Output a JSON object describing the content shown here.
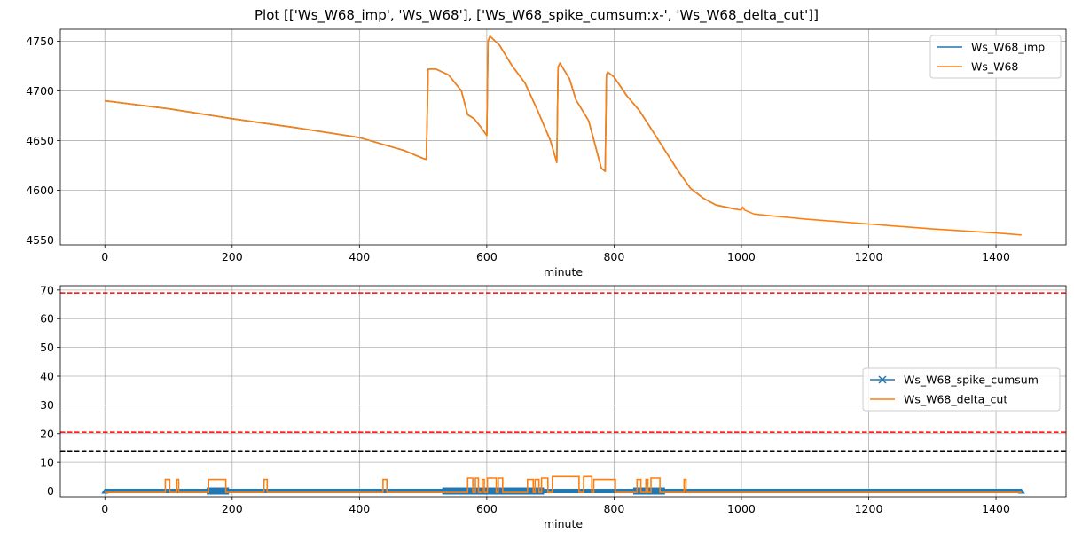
{
  "figure": {
    "title": "Plot [['Ws_W68_imp', 'Ws_W68'], ['Ws_W68_spike_cumsum:x-', 'Ws_W68_delta_cut']]"
  },
  "chart_data": [
    {
      "type": "line",
      "xlabel": "minute",
      "ylabel": "",
      "xlim": [
        -70,
        1510
      ],
      "ylim": [
        4545,
        4762
      ],
      "xticks": [
        0,
        200,
        400,
        600,
        800,
        1000,
        1200,
        1400
      ],
      "yticks": [
        4550,
        4600,
        4650,
        4700,
        4750
      ],
      "grid": true,
      "legend": "top-right",
      "series": [
        {
          "name": "Ws_W68_imp",
          "color": "#1f77b4",
          "marker": "none",
          "x": [
            0,
            100,
            200,
            300,
            400,
            470,
            500,
            505,
            508,
            520,
            540,
            560,
            565,
            570,
            580,
            590,
            600,
            602,
            605,
            620,
            640,
            660,
            680,
            700,
            710,
            712,
            715,
            730,
            740,
            760,
            780,
            786,
            788,
            790,
            800,
            820,
            840,
            860,
            880,
            900,
            920,
            940,
            960,
            990
          ],
          "y": [
            4690,
            4682,
            4672,
            4663,
            4653,
            4640,
            4632,
            4631,
            4722,
            4722,
            4716,
            4700,
            4688,
            4676,
            4672,
            4664,
            4655,
            4750,
            4755,
            4746,
            4725,
            4708,
            4680,
            4650,
            4628,
            4724,
            4728,
            4712,
            4691,
            4670,
            4622,
            4619,
            4716,
            4719,
            4714,
            4695,
            4680,
            4660,
            4640,
            4620,
            4602,
            4592,
            4585,
            4581
          ]
        },
        {
          "name": "Ws_W68",
          "color": "#ff7f0e",
          "marker": "none",
          "x": [
            0,
            100,
            200,
            300,
            400,
            470,
            500,
            505,
            508,
            520,
            540,
            560,
            565,
            570,
            580,
            590,
            600,
            602,
            605,
            620,
            640,
            660,
            680,
            700,
            710,
            712,
            715,
            730,
            740,
            760,
            780,
            786,
            788,
            790,
            800,
            820,
            840,
            860,
            880,
            900,
            920,
            940,
            960,
            990,
            1000,
            1002,
            1005,
            1020,
            1050,
            1100,
            1200,
            1300,
            1400,
            1440
          ],
          "y": [
            4690,
            4682,
            4672,
            4663,
            4653,
            4640,
            4632,
            4631,
            4722,
            4722,
            4716,
            4700,
            4688,
            4676,
            4672,
            4664,
            4655,
            4750,
            4755,
            4746,
            4725,
            4708,
            4680,
            4650,
            4628,
            4724,
            4728,
            4712,
            4691,
            4670,
            4622,
            4619,
            4716,
            4719,
            4714,
            4695,
            4680,
            4660,
            4640,
            4620,
            4602,
            4592,
            4585,
            4581,
            4580,
            4583,
            4580,
            4576,
            4574,
            4571,
            4566,
            4561,
            4557,
            4555
          ]
        }
      ]
    },
    {
      "type": "line",
      "xlabel": "minute",
      "ylabel": "",
      "xlim": [
        -70,
        1510
      ],
      "ylim": [
        -2,
        71.5
      ],
      "xticks": [
        0,
        200,
        400,
        600,
        800,
        1000,
        1200,
        1400
      ],
      "yticks": [
        0,
        10,
        20,
        30,
        40,
        50,
        60,
        70
      ],
      "grid": true,
      "legend": "center-right",
      "hlines": [
        {
          "y": 69,
          "color": "#ff0000",
          "style": "dashed"
        },
        {
          "y": 20.5,
          "color": "#ff0000",
          "style": "dashed"
        },
        {
          "y": 14,
          "color": "#000000",
          "style": "dashed"
        }
      ],
      "series": [
        {
          "name": "Ws_W68_spike_cumsum",
          "color": "#1f77b4",
          "marker": "x",
          "x": [
            0,
            1440
          ],
          "y": [
            0,
            0
          ],
          "note_dense_band": [
            [
              160,
              195
            ],
            [
              530,
              690
            ],
            [
              830,
              880
            ]
          ]
        },
        {
          "name": "Ws_W68_delta_cut",
          "color": "#ff7f0e",
          "marker": "none",
          "pulses": [
            {
              "start": 95,
              "end": 102,
              "height": 4
            },
            {
              "start": 113,
              "end": 116,
              "height": 4
            },
            {
              "start": 163,
              "end": 190,
              "height": 4
            },
            {
              "start": 250,
              "end": 255,
              "height": 4
            },
            {
              "start": 437,
              "end": 443,
              "height": 4
            },
            {
              "start": 570,
              "end": 578,
              "height": 4.5
            },
            {
              "start": 582,
              "end": 587,
              "height": 4.5
            },
            {
              "start": 593,
              "end": 596,
              "height": 4
            },
            {
              "start": 601,
              "end": 615,
              "height": 4.5
            },
            {
              "start": 618,
              "end": 625,
              "height": 4.5
            },
            {
              "start": 664,
              "end": 673,
              "height": 4
            },
            {
              "start": 676,
              "end": 682,
              "height": 4
            },
            {
              "start": 686,
              "end": 696,
              "height": 4.5
            },
            {
              "start": 703,
              "end": 745,
              "height": 5
            },
            {
              "start": 752,
              "end": 765,
              "height": 5
            },
            {
              "start": 768,
              "end": 802,
              "height": 4
            },
            {
              "start": 836,
              "end": 842,
              "height": 4
            },
            {
              "start": 850,
              "end": 853,
              "height": 4
            },
            {
              "start": 858,
              "end": 872,
              "height": 4.5
            },
            {
              "start": 910,
              "end": 913,
              "height": 4
            }
          ],
          "baseline": -0.5,
          "xmax": 1440
        }
      ]
    }
  ]
}
